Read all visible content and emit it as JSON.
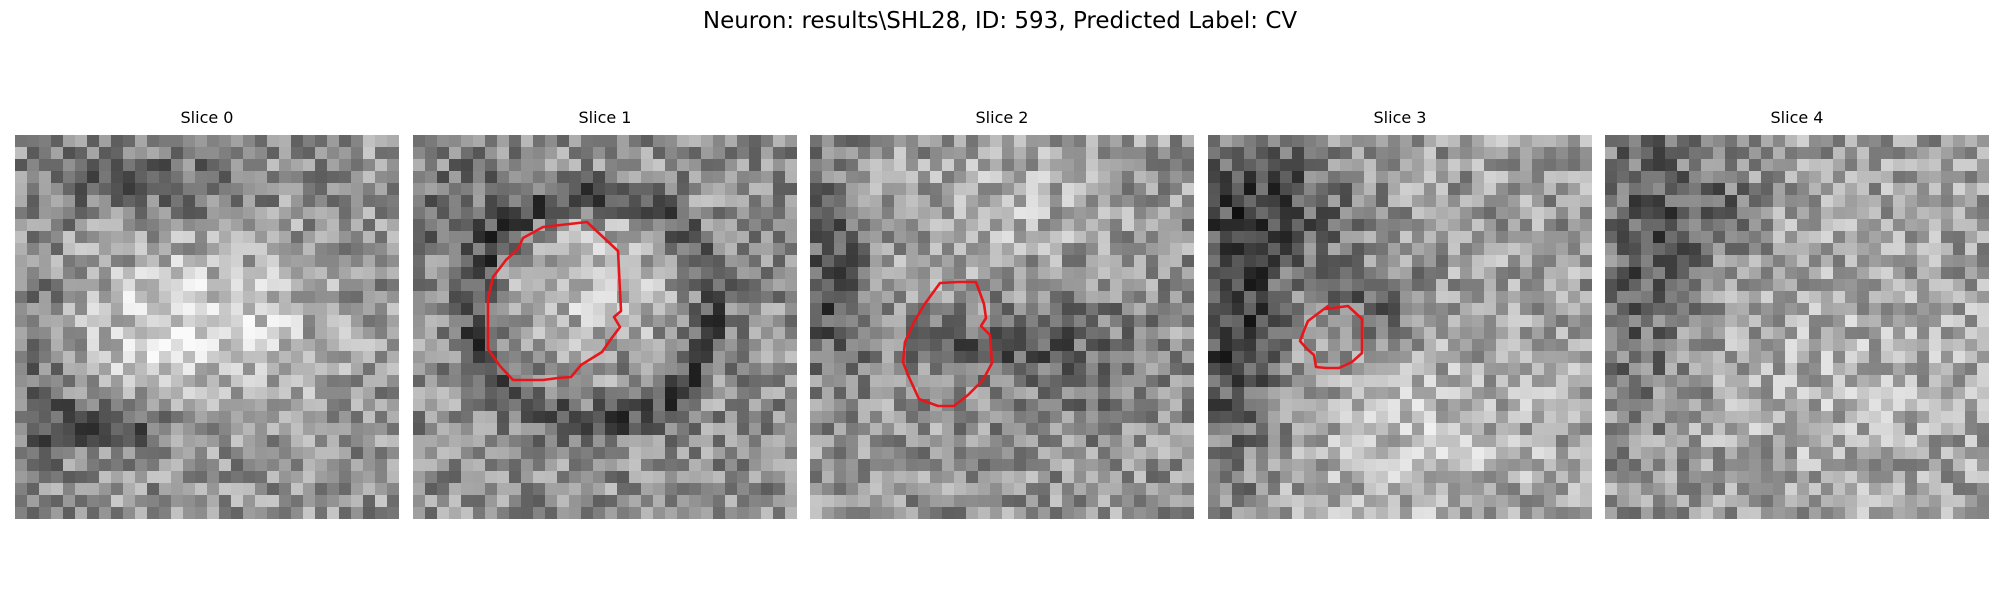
{
  "figure": {
    "title": "Neuron: results\\SHL28, ID: 593, Predicted Label: CV"
  },
  "panels": [
    {
      "title": "Slice 0",
      "seed": 11,
      "pattern": "blob0",
      "contour": false
    },
    {
      "title": "Slice 1",
      "seed": 23,
      "pattern": "ring1",
      "contour": true
    },
    {
      "title": "Slice 2",
      "seed": 37,
      "pattern": "dark2",
      "contour": true
    },
    {
      "title": "Slice 3",
      "seed": 51,
      "pattern": "dark3",
      "contour": true
    },
    {
      "title": "Slice 4",
      "seed": 67,
      "pattern": "flat4",
      "contour": false
    }
  ],
  "colors": {
    "contour": "#e8161a",
    "colormap": "gray"
  }
}
